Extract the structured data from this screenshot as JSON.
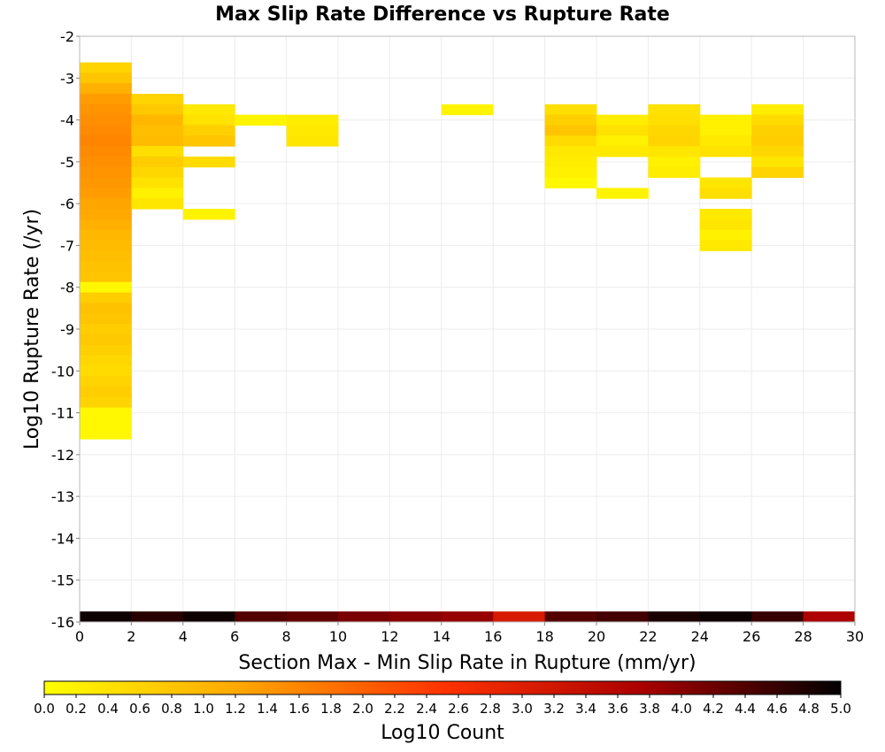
{
  "chart_data": {
    "type": "heatmap",
    "title": "Max Slip Rate Difference vs Rupture Rate",
    "xlabel": "Section Max - Min Slip Rate in Rupture (mm/yr)",
    "ylabel": "Log10 Rupture Rate (/yr)",
    "xlim": [
      0,
      30
    ],
    "ylim": [
      -16,
      -2
    ],
    "x_ticks": [
      "0",
      "2",
      "4",
      "6",
      "8",
      "10",
      "12",
      "14",
      "16",
      "18",
      "20",
      "22",
      "24",
      "26",
      "28",
      "30"
    ],
    "y_ticks": [
      "-2",
      "-3",
      "-4",
      "-5",
      "-6",
      "-7",
      "-8",
      "-9",
      "-10",
      "-11",
      "-12",
      "-13",
      "-14",
      "-15",
      "-16"
    ],
    "grid": true,
    "x_bin_width": 2,
    "y_bin_height": 0.25,
    "colorbar": {
      "label": "Log10 Count",
      "range": [
        0,
        5
      ],
      "ticks": [
        "0.0",
        "0.2",
        "0.4",
        "0.6",
        "0.8",
        "1.0",
        "1.2",
        "1.4",
        "1.6",
        "1.8",
        "2.0",
        "2.2",
        "2.4",
        "2.6",
        "2.8",
        "3.0",
        "3.2",
        "3.4",
        "3.6",
        "3.8",
        "4.0",
        "4.2",
        "4.4",
        "4.6",
        "4.8",
        "5.0"
      ],
      "colors": [
        "#ffff00",
        "#ffa500",
        "#ff3300",
        "#aa0000",
        "#000000"
      ],
      "placement": "bottom"
    },
    "cells": [
      {
        "x": 0,
        "y": -2.75,
        "v": 0.6
      },
      {
        "x": 0,
        "y": -3.0,
        "v": 0.8
      },
      {
        "x": 0,
        "y": -3.25,
        "v": 1.1
      },
      {
        "x": 0,
        "y": -3.5,
        "v": 1.35
      },
      {
        "x": 0,
        "y": -3.75,
        "v": 1.45
      },
      {
        "x": 0,
        "y": -4.0,
        "v": 1.5
      },
      {
        "x": 0,
        "y": -4.25,
        "v": 1.55
      },
      {
        "x": 0,
        "y": -4.5,
        "v": 1.6
      },
      {
        "x": 0,
        "y": -4.75,
        "v": 1.55
      },
      {
        "x": 0,
        "y": -5.0,
        "v": 1.5
      },
      {
        "x": 0,
        "y": -5.25,
        "v": 1.45
      },
      {
        "x": 0,
        "y": -5.5,
        "v": 1.4
      },
      {
        "x": 0,
        "y": -5.75,
        "v": 1.35
      },
      {
        "x": 0,
        "y": -6.0,
        "v": 1.25
      },
      {
        "x": 0,
        "y": -6.25,
        "v": 1.2
      },
      {
        "x": 0,
        "y": -6.5,
        "v": 1.1
      },
      {
        "x": 0,
        "y": -6.75,
        "v": 1.0
      },
      {
        "x": 0,
        "y": -7.0,
        "v": 0.95
      },
      {
        "x": 0,
        "y": -7.25,
        "v": 0.9
      },
      {
        "x": 0,
        "y": -7.5,
        "v": 0.85
      },
      {
        "x": 0,
        "y": -7.75,
        "v": 0.8
      },
      {
        "x": 0,
        "y": -8.0,
        "v": 0.1
      },
      {
        "x": 0,
        "y": -8.25,
        "v": 0.7
      },
      {
        "x": 0,
        "y": -8.5,
        "v": 0.85
      },
      {
        "x": 0,
        "y": -8.75,
        "v": 0.8
      },
      {
        "x": 0,
        "y": -9.0,
        "v": 0.7
      },
      {
        "x": 0,
        "y": -9.25,
        "v": 0.75
      },
      {
        "x": 0,
        "y": -9.5,
        "v": 0.65
      },
      {
        "x": 0,
        "y": -9.75,
        "v": 0.55
      },
      {
        "x": 0,
        "y": -10.0,
        "v": 0.5
      },
      {
        "x": 0,
        "y": -10.25,
        "v": 0.6
      },
      {
        "x": 0,
        "y": -10.5,
        "v": 0.7
      },
      {
        "x": 0,
        "y": -10.75,
        "v": 0.6
      },
      {
        "x": 0,
        "y": -11.0,
        "v": 0.1
      },
      {
        "x": 0,
        "y": -11.25,
        "v": 0.1
      },
      {
        "x": 0,
        "y": -11.5,
        "v": 0.1
      },
      {
        "x": 2,
        "y": -3.5,
        "v": 0.6
      },
      {
        "x": 2,
        "y": -3.75,
        "v": 0.75
      },
      {
        "x": 2,
        "y": -4.0,
        "v": 1.0
      },
      {
        "x": 2,
        "y": -4.25,
        "v": 0.9
      },
      {
        "x": 2,
        "y": -4.5,
        "v": 0.95
      },
      {
        "x": 2,
        "y": -4.75,
        "v": 0.45
      },
      {
        "x": 2,
        "y": -5.0,
        "v": 0.7
      },
      {
        "x": 2,
        "y": -5.25,
        "v": 0.55
      },
      {
        "x": 2,
        "y": -5.5,
        "v": 0.4
      },
      {
        "x": 2,
        "y": -5.75,
        "v": 0.2
      },
      {
        "x": 2,
        "y": -6.0,
        "v": 0.35
      },
      {
        "x": 4,
        "y": -3.75,
        "v": 0.3
      },
      {
        "x": 4,
        "y": -4.0,
        "v": 0.4
      },
      {
        "x": 4,
        "y": -4.25,
        "v": 0.65
      },
      {
        "x": 4,
        "y": -4.5,
        "v": 0.8
      },
      {
        "x": 4,
        "y": -5.0,
        "v": 0.5
      },
      {
        "x": 4,
        "y": -6.25,
        "v": 0.15
      },
      {
        "x": 6,
        "y": -4.0,
        "v": 0.15
      },
      {
        "x": 8,
        "y": -4.0,
        "v": 0.25
      },
      {
        "x": 8,
        "y": -4.25,
        "v": 0.3
      },
      {
        "x": 8,
        "y": -4.5,
        "v": 0.35
      },
      {
        "x": 14,
        "y": -3.75,
        "v": 0.15
      },
      {
        "x": 18,
        "y": -3.75,
        "v": 0.45
      },
      {
        "x": 18,
        "y": -4.0,
        "v": 0.65
      },
      {
        "x": 18,
        "y": -4.25,
        "v": 0.8
      },
      {
        "x": 18,
        "y": -4.5,
        "v": 0.5
      },
      {
        "x": 18,
        "y": -4.75,
        "v": 0.3
      },
      {
        "x": 18,
        "y": -5.0,
        "v": 0.25
      },
      {
        "x": 18,
        "y": -5.25,
        "v": 0.2
      },
      {
        "x": 18,
        "y": -5.5,
        "v": 0.1
      },
      {
        "x": 20,
        "y": -4.0,
        "v": 0.25
      },
      {
        "x": 20,
        "y": -4.25,
        "v": 0.4
      },
      {
        "x": 20,
        "y": -4.5,
        "v": 0.2
      },
      {
        "x": 20,
        "y": -4.75,
        "v": 0.3
      },
      {
        "x": 20,
        "y": -5.75,
        "v": 0.15
      },
      {
        "x": 22,
        "y": -3.75,
        "v": 0.4
      },
      {
        "x": 22,
        "y": -4.0,
        "v": 0.45
      },
      {
        "x": 22,
        "y": -4.25,
        "v": 0.55
      },
      {
        "x": 22,
        "y": -4.5,
        "v": 0.6
      },
      {
        "x": 22,
        "y": -4.75,
        "v": 0.35
      },
      {
        "x": 22,
        "y": -5.0,
        "v": 0.2
      },
      {
        "x": 22,
        "y": -5.25,
        "v": 0.25
      },
      {
        "x": 24,
        "y": -4.0,
        "v": 0.2
      },
      {
        "x": 24,
        "y": -4.25,
        "v": 0.2
      },
      {
        "x": 24,
        "y": -4.5,
        "v": 0.3
      },
      {
        "x": 24,
        "y": -4.75,
        "v": 0.4
      },
      {
        "x": 24,
        "y": -5.5,
        "v": 0.35
      },
      {
        "x": 24,
        "y": -5.75,
        "v": 0.45
      },
      {
        "x": 24,
        "y": -6.25,
        "v": 0.3
      },
      {
        "x": 24,
        "y": -6.5,
        "v": 0.35
      },
      {
        "x": 24,
        "y": -6.75,
        "v": 0.2
      },
      {
        "x": 24,
        "y": -7.0,
        "v": 0.3
      },
      {
        "x": 26,
        "y": -3.75,
        "v": 0.25
      },
      {
        "x": 26,
        "y": -4.0,
        "v": 0.5
      },
      {
        "x": 26,
        "y": -4.25,
        "v": 0.65
      },
      {
        "x": 26,
        "y": -4.5,
        "v": 0.7
      },
      {
        "x": 26,
        "y": -4.75,
        "v": 0.55
      },
      {
        "x": 26,
        "y": -5.0,
        "v": 0.35
      },
      {
        "x": 26,
        "y": -5.25,
        "v": 0.6
      }
    ],
    "bottom_strip": [
      {
        "x": 0,
        "v": 4.9
      },
      {
        "x": 2,
        "v": 4.7
      },
      {
        "x": 4,
        "v": 4.9
      },
      {
        "x": 6,
        "v": 4.4
      },
      {
        "x": 8,
        "v": 4.3
      },
      {
        "x": 10,
        "v": 4.1
      },
      {
        "x": 12,
        "v": 4.0
      },
      {
        "x": 14,
        "v": 3.9
      },
      {
        "x": 16,
        "v": 3.1
      },
      {
        "x": 18,
        "v": 4.4
      },
      {
        "x": 20,
        "v": 4.5
      },
      {
        "x": 22,
        "v": 4.8
      },
      {
        "x": 24,
        "v": 4.9
      },
      {
        "x": 26,
        "v": 4.6
      },
      {
        "x": 28,
        "v": 3.7
      }
    ]
  }
}
